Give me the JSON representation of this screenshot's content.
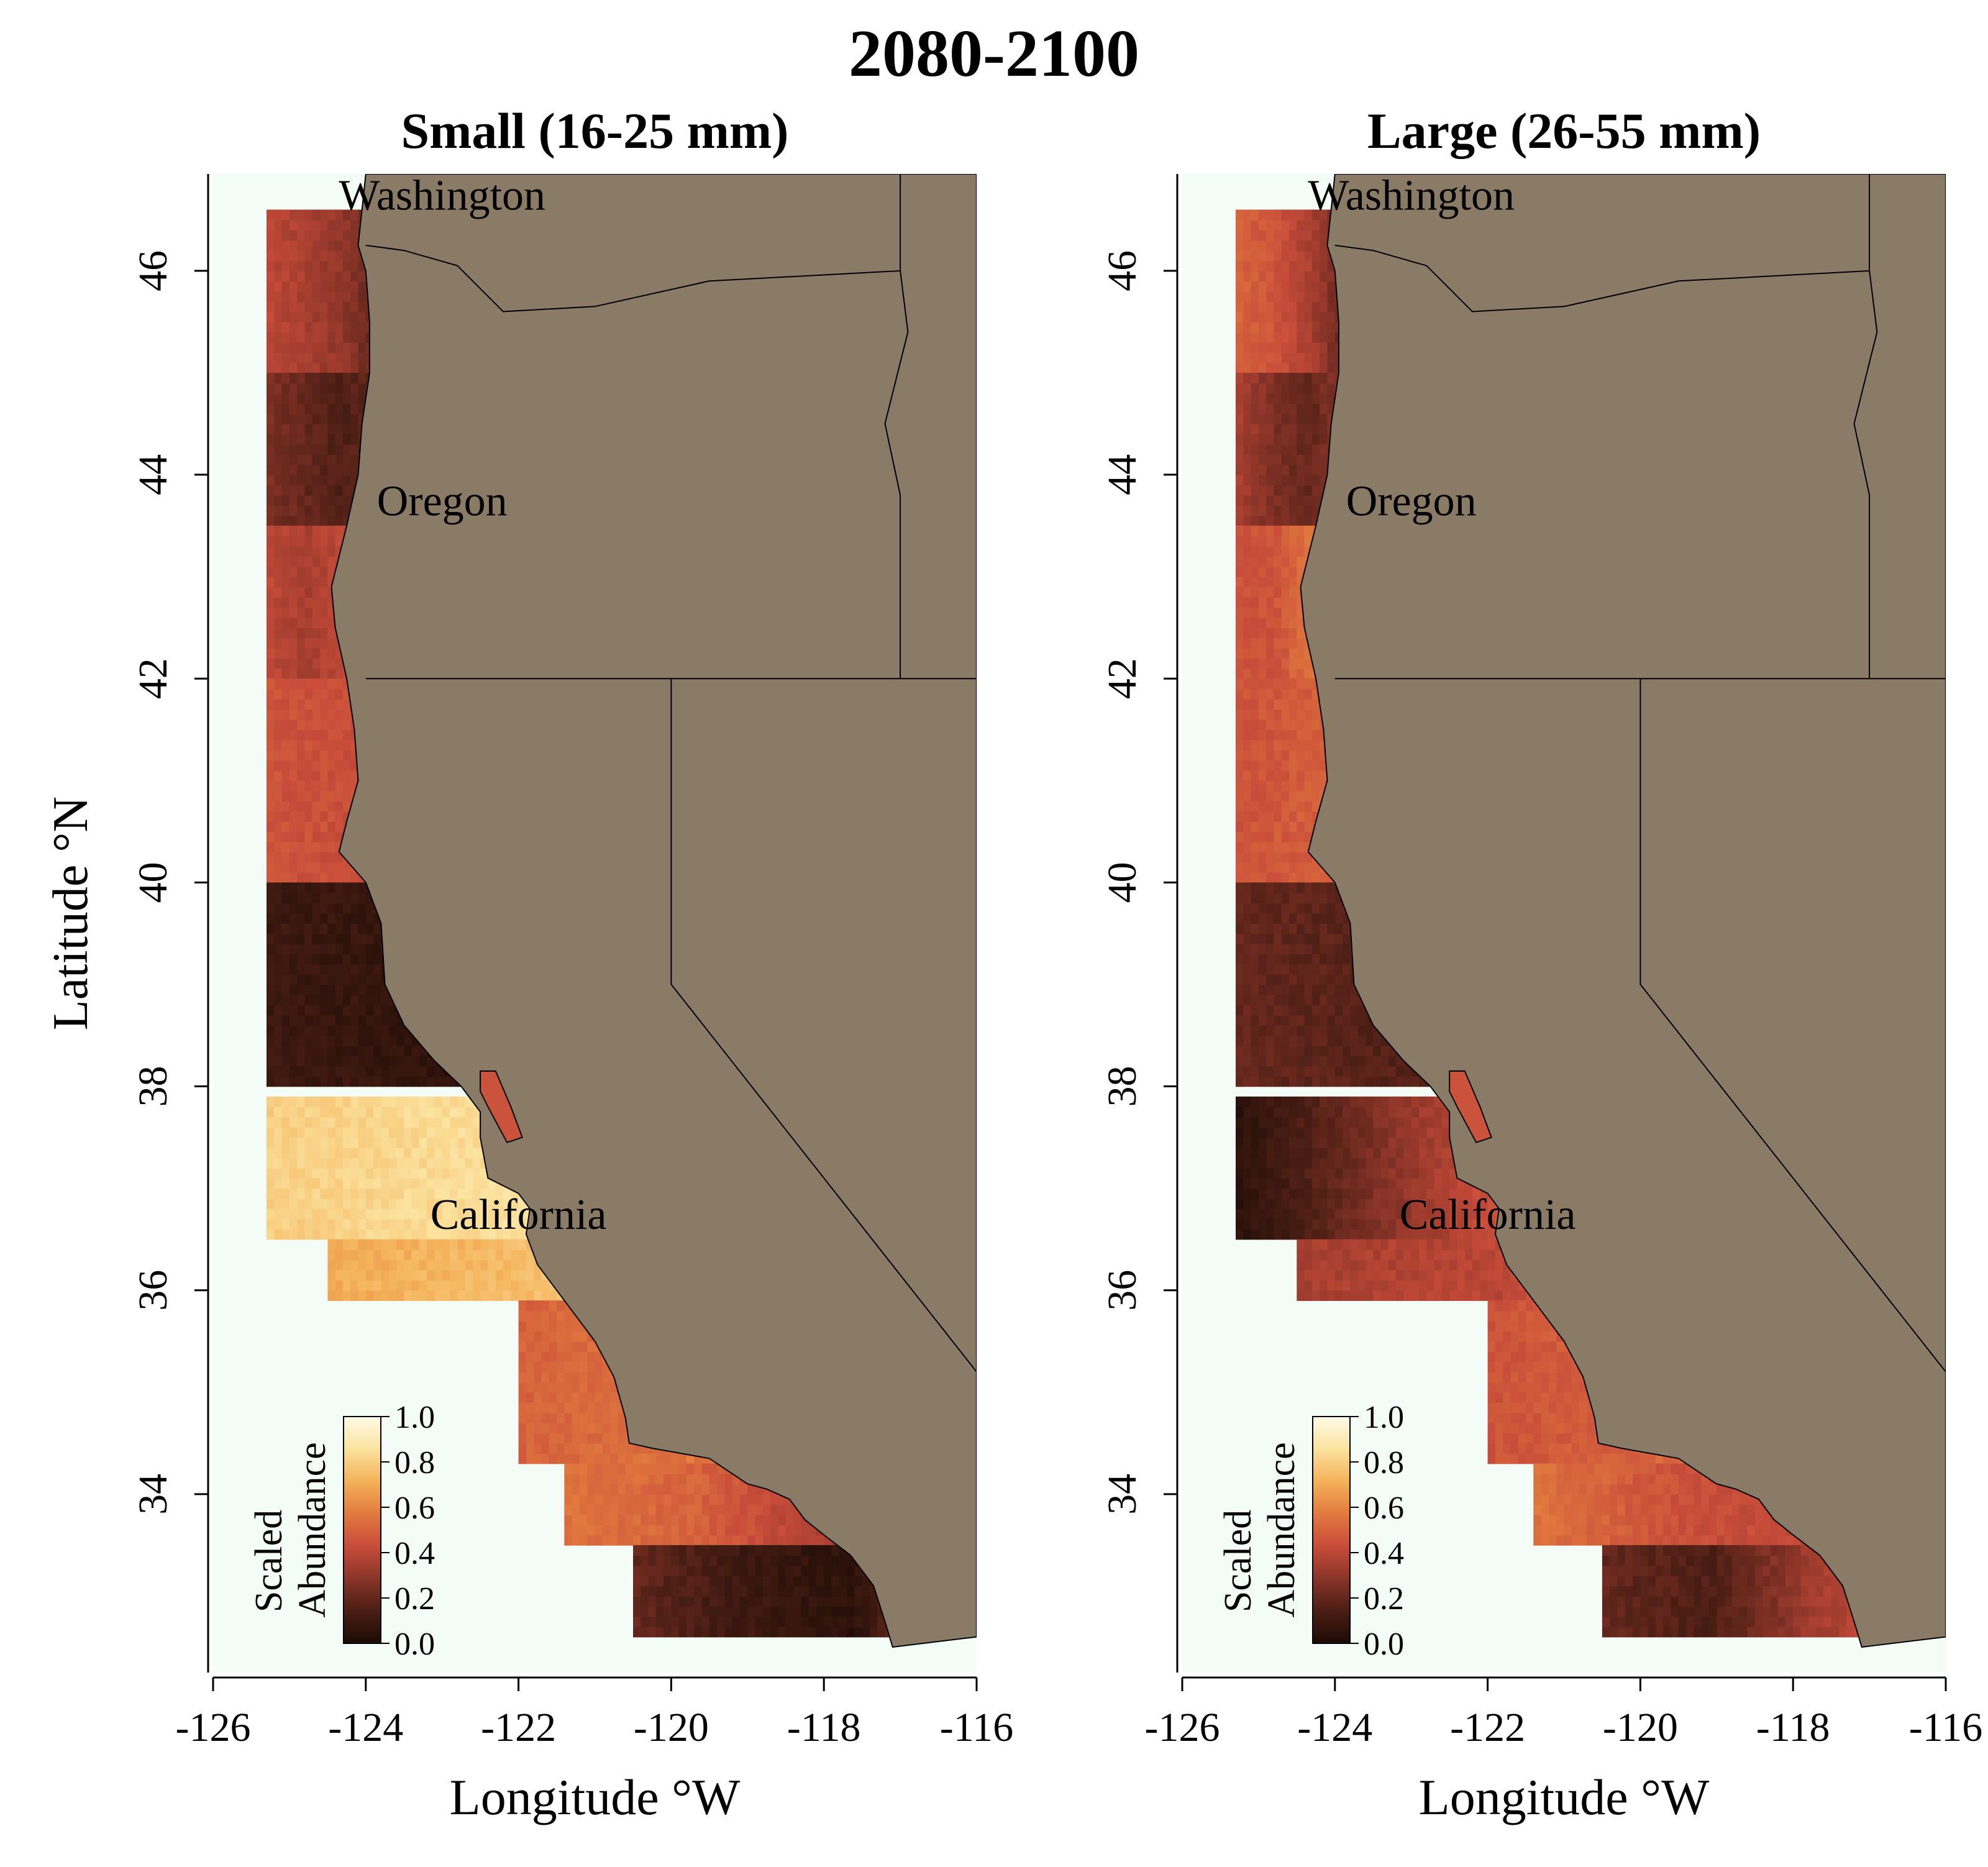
{
  "figure": {
    "title": "2080-2100"
  },
  "colors": {
    "ocean_background": "#f4fcf8",
    "land": "#897b66",
    "border": "#000000",
    "colormap": [
      "#1c0c06",
      "#4a1e14",
      "#8a3428",
      "#c84c3a",
      "#e27a3e",
      "#f4b25a",
      "#fbe29e",
      "#fffbe8"
    ]
  },
  "axes": {
    "xlabel": "Longitude °W",
    "ylabel": "Latitude °N",
    "x_ticks": [
      "-126",
      "-124",
      "-122",
      "-120",
      "-118",
      "-116"
    ],
    "y_ticks": [
      "34",
      "36",
      "38",
      "40",
      "42",
      "44",
      "46"
    ],
    "x_range": [
      -126,
      -116
    ],
    "y_range": [
      32.25,
      46.95
    ]
  },
  "panels": [
    {
      "title": "Small (16-25 mm)",
      "state_labels": [
        "Washington",
        "Oregon",
        "California"
      ],
      "colorbar": {
        "title_line1": "Scaled",
        "title_line2": "Abundance",
        "ticks": [
          "0.0",
          "0.2",
          "0.4",
          "0.6",
          "0.8",
          "1.0"
        ]
      }
    },
    {
      "title": "Large (26-55 mm)",
      "state_labels": [
        "Washington",
        "Oregon",
        "California"
      ],
      "colorbar": {
        "title_line1": "Scaled",
        "title_line2": "Abundance",
        "ticks": [
          "0.0",
          "0.2",
          "0.4",
          "0.6",
          "0.8",
          "1.0"
        ]
      }
    }
  ],
  "chart_data": {
    "type": "heatmap",
    "title": "2080-2100",
    "xlabel": "Longitude °W",
    "ylabel": "Latitude °N",
    "xlim": [
      -126,
      -116
    ],
    "ylim": [
      32.25,
      46.95
    ],
    "value_range": [
      0.0,
      1.0
    ],
    "legend": "bottom-left",
    "panels": [
      {
        "name": "Small (16-25 mm)",
        "regions": [
          {
            "lat": [
              45.0,
              46.6
            ],
            "lon_west": -125.3,
            "values": [
              0.4,
              0.35,
              0.3,
              0.2
            ]
          },
          {
            "lat": [
              43.5,
              45.0
            ],
            "lon_west": -125.3,
            "values": [
              0.25,
              0.2,
              0.15,
              0.2
            ]
          },
          {
            "lat": [
              42.0,
              43.5
            ],
            "lon_west": -125.3,
            "values": [
              0.4,
              0.35,
              0.4,
              0.45
            ]
          },
          {
            "lat": [
              40.0,
              42.0
            ],
            "lon_west": -125.3,
            "values": [
              0.45,
              0.4,
              0.5,
              0.6
            ]
          },
          {
            "lat": [
              38.0,
              40.0
            ],
            "lon_west": -125.3,
            "values": [
              0.1,
              0.05,
              0.2,
              0.35
            ]
          },
          {
            "lat": [
              36.5,
              37.9
            ],
            "lon_west": -125.3,
            "values": [
              0.8,
              0.85,
              0.9,
              0.95
            ]
          },
          {
            "lat": [
              35.9,
              36.5
            ],
            "lon_west": -124.5,
            "values": [
              0.7,
              0.75,
              0.85,
              1.0
            ]
          },
          {
            "lat": [
              34.3,
              35.9
            ],
            "lon_west": -122.0,
            "values": [
              0.5,
              0.55,
              0.6,
              0.7
            ]
          },
          {
            "lat": [
              33.5,
              34.3
            ],
            "lon_west": -121.4,
            "values": [
              0.55,
              0.5,
              0.35,
              0.2
            ]
          },
          {
            "lat": [
              32.6,
              33.5
            ],
            "lon_west": -120.5,
            "values": [
              0.2,
              0.1,
              0.05,
              0.35
            ]
          }
        ]
      },
      {
        "name": "Large (26-55 mm)",
        "regions": [
          {
            "lat": [
              45.0,
              46.6
            ],
            "lon_west": -125.3,
            "values": [
              0.5,
              0.45,
              0.35,
              0.2
            ]
          },
          {
            "lat": [
              43.5,
              45.0
            ],
            "lon_west": -125.3,
            "values": [
              0.35,
              0.25,
              0.2,
              0.3
            ]
          },
          {
            "lat": [
              42.0,
              43.5
            ],
            "lon_west": -125.3,
            "values": [
              0.45,
              0.45,
              0.55,
              0.6
            ]
          },
          {
            "lat": [
              40.0,
              42.0
            ],
            "lon_west": -125.3,
            "values": [
              0.45,
              0.55,
              0.6,
              0.7
            ]
          },
          {
            "lat": [
              38.0,
              40.0
            ],
            "lon_west": -125.3,
            "values": [
              0.2,
              0.15,
              0.25,
              0.35
            ]
          },
          {
            "lat": [
              36.5,
              37.9
            ],
            "lon_west": -125.3,
            "values": [
              0.05,
              0.4,
              0.75,
              0.85
            ]
          },
          {
            "lat": [
              35.9,
              36.5
            ],
            "lon_west": -124.5,
            "values": [
              0.35,
              0.4,
              0.8,
              0.95
            ]
          },
          {
            "lat": [
              34.3,
              35.9
            ],
            "lon_west": -122.0,
            "values": [
              0.45,
              0.5,
              0.6,
              0.7
            ]
          },
          {
            "lat": [
              33.5,
              34.3
            ],
            "lon_west": -121.4,
            "values": [
              0.55,
              0.45,
              0.4,
              0.3
            ]
          },
          {
            "lat": [
              32.6,
              33.5
            ],
            "lon_west": -120.5,
            "values": [
              0.2,
              0.15,
              0.35,
              0.45
            ]
          }
        ]
      }
    ]
  }
}
